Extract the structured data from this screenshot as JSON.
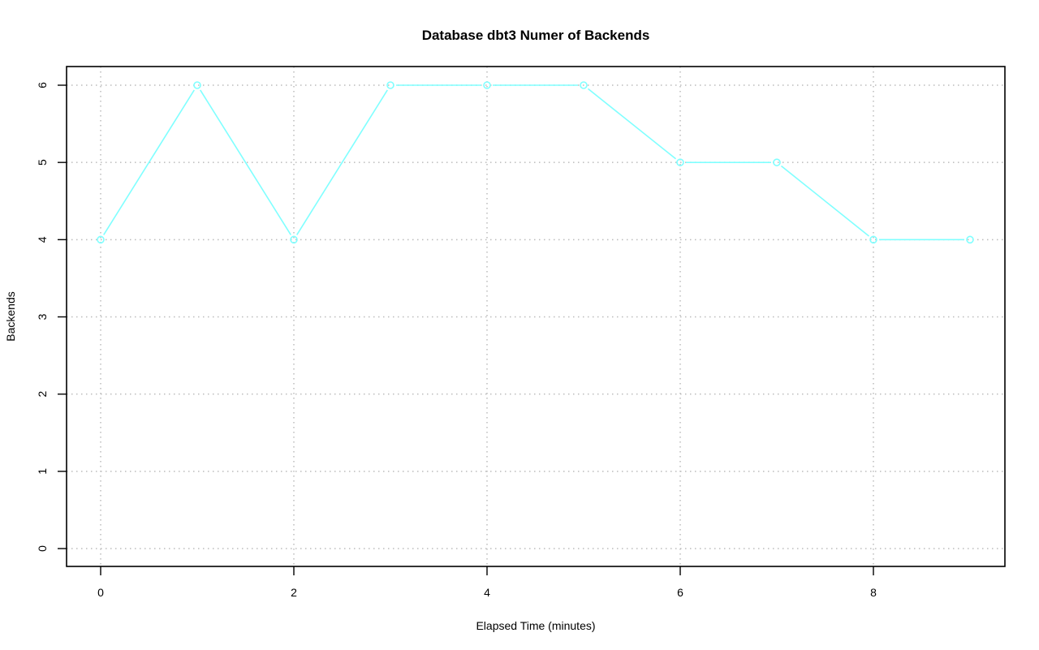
{
  "chart_data": {
    "type": "line",
    "title": "Database dbt3 Numer of Backends",
    "xlabel": "Elapsed Time (minutes)",
    "ylabel": "Backends",
    "x": [
      0,
      1,
      2,
      3,
      4,
      5,
      6,
      7,
      8,
      9
    ],
    "series": [
      {
        "values": [
          4,
          6,
          4,
          6,
          6,
          6,
          5,
          5,
          4,
          4
        ],
        "color": "#80ffff"
      }
    ],
    "xlim": [
      0,
      9
    ],
    "ylim": [
      0,
      6
    ],
    "xticks": [
      0,
      2,
      4,
      6,
      8
    ],
    "yticks": [
      0,
      1,
      2,
      3,
      4,
      5,
      6
    ],
    "grid": true,
    "marker": "open-circle"
  }
}
